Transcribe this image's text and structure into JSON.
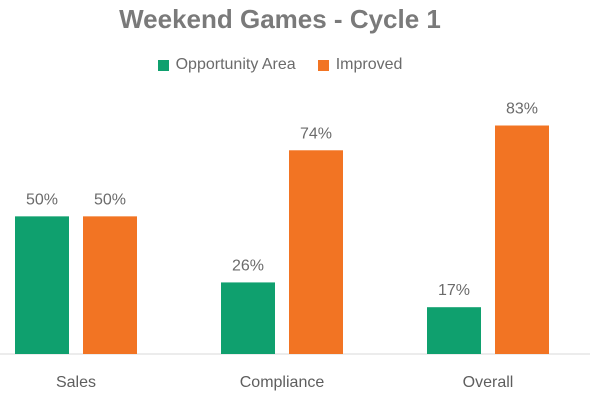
{
  "chart_data": {
    "type": "bar",
    "title": "Weekend Games - Cycle 1",
    "categories": [
      "Sales",
      "Compliance",
      "Overall"
    ],
    "series": [
      {
        "name": "Opportunity Area",
        "values": [
          50,
          26,
          17
        ],
        "color": "#0fa06e",
        "labels": [
          "50%",
          "26%",
          "17%"
        ]
      },
      {
        "name": "Improved",
        "values": [
          50,
          74,
          83
        ],
        "color": "#f27423",
        "labels": [
          "50%",
          "74%",
          "83%"
        ]
      }
    ],
    "xlabel": "",
    "ylabel": "",
    "ylim": [
      0,
      85
    ],
    "grid": false,
    "legend": "top"
  }
}
